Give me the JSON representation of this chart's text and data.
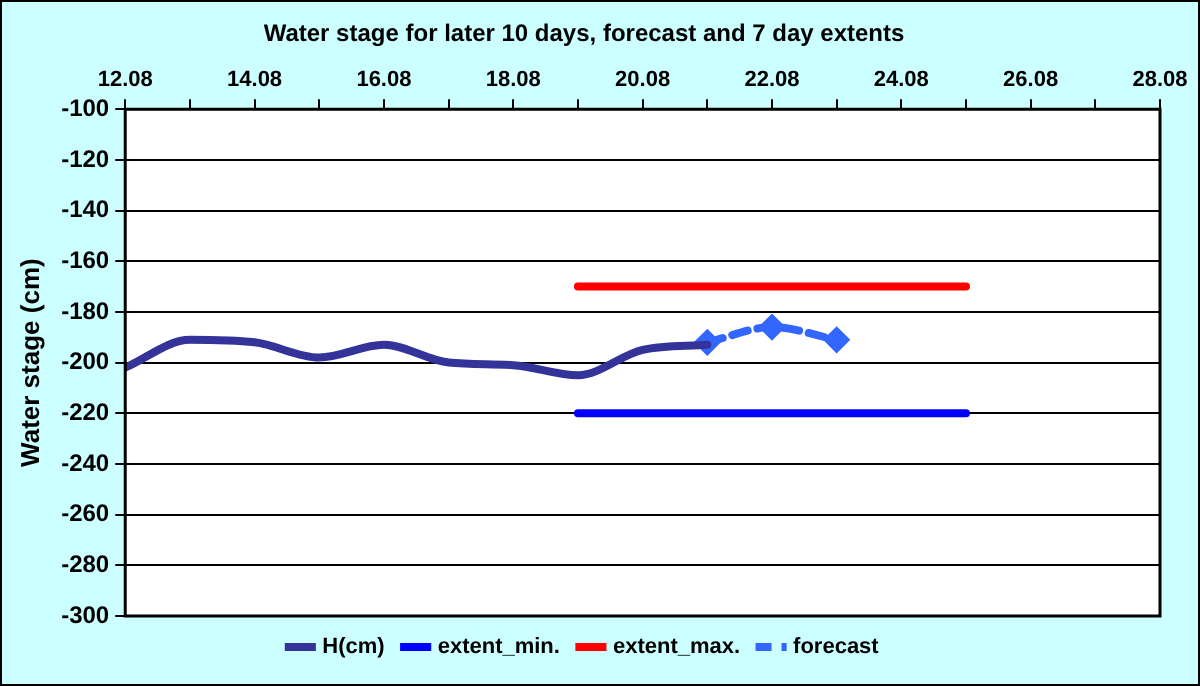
{
  "chart_data": {
    "type": "line",
    "title": "Water stage for later 10 days, forecast and 7 day extents",
    "ylabel": "Water stage (cm)",
    "series": [
      {
        "name": "H(cm)",
        "color": "#333399",
        "x": [
          "--08-12",
          "--08-13",
          "--08-14",
          "--08-15",
          "--08-16",
          "--08-17",
          "--08-18",
          "--08-19",
          "--08-20",
          "--08-21"
        ],
        "values": [
          -202,
          -191,
          -192,
          -198,
          -193,
          -200,
          -201,
          -205,
          -195,
          -193
        ],
        "marker": "none",
        "line_style": "solid"
      },
      {
        "name": "extent_min.",
        "color": "#0000ff",
        "x": [
          "--08-19",
          "--08-25"
        ],
        "values": [
          -220,
          -220
        ],
        "marker": "none",
        "line_style": "solid"
      },
      {
        "name": "extent_max.",
        "color": "#ff0000",
        "x": [
          "--08-19",
          "--08-25"
        ],
        "values": [
          -170,
          -170
        ],
        "marker": "none",
        "line_style": "solid"
      },
      {
        "name": "forecast",
        "color": "#3366ff",
        "x": [
          "--08-21",
          "--08-22",
          "--08-23"
        ],
        "values": [
          -192,
          -186,
          -191
        ],
        "marker": "diamond",
        "line_style": "dashed"
      }
    ],
    "xlim": [
      "--08-12",
      "--08-28"
    ],
    "xticks": [
      {
        "value": "--08-12",
        "label": "12.08"
      },
      {
        "value": "--08-13",
        "label": null
      },
      {
        "value": "--08-14",
        "label": "14.08"
      },
      {
        "value": "--08-15",
        "label": null
      },
      {
        "value": "--08-16",
        "label": "16.08"
      },
      {
        "value": "--08-17",
        "label": null
      },
      {
        "value": "--08-18",
        "label": "18.08"
      },
      {
        "value": "--08-19",
        "label": null
      },
      {
        "value": "--08-20",
        "label": "20.08"
      },
      {
        "value": "--08-21",
        "label": null
      },
      {
        "value": "--08-22",
        "label": "22.08"
      },
      {
        "value": "--08-23",
        "label": null
      },
      {
        "value": "--08-24",
        "label": "24.08"
      },
      {
        "value": "--08-25",
        "label": null
      },
      {
        "value": "--08-26",
        "label": "26.08"
      },
      {
        "value": "--08-27",
        "label": null
      },
      {
        "value": "--08-28",
        "label": "28.08"
      }
    ],
    "ylim": [
      -300,
      -100
    ],
    "yticks": [
      -300,
      -280,
      -260,
      -240,
      -220,
      -200,
      -180,
      -160,
      -140,
      -120,
      -100
    ],
    "grid": "y",
    "legend": "bottom"
  }
}
